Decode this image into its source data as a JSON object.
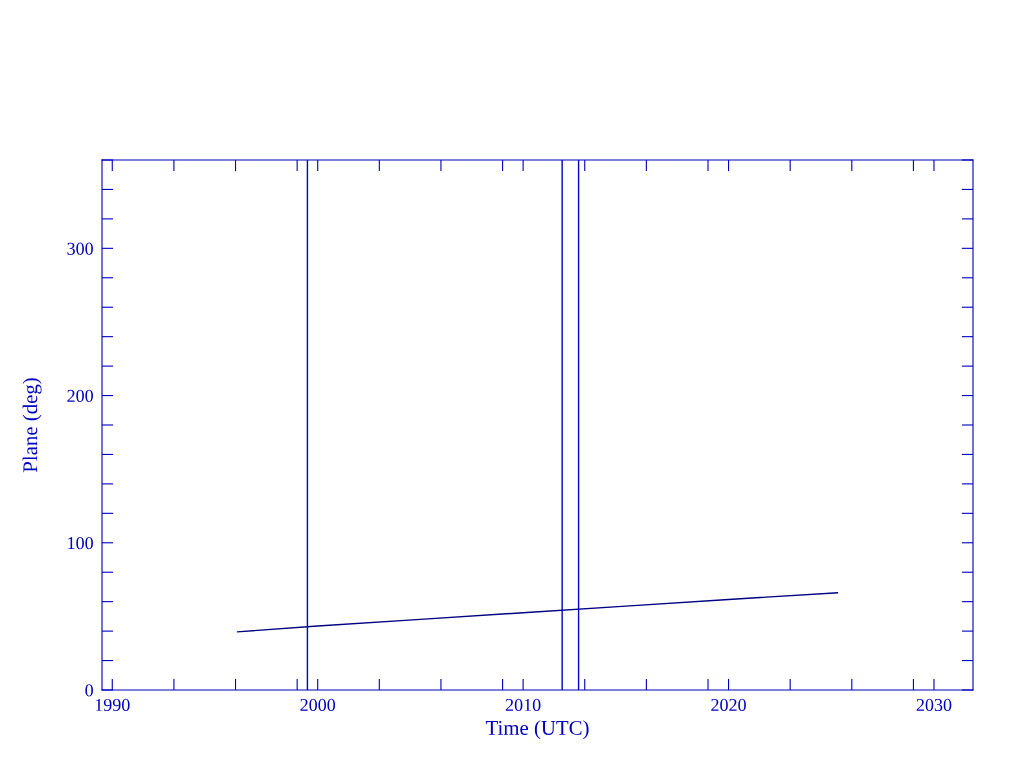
{
  "chart_data": {
    "type": "line",
    "xlabel": "Time (UTC)",
    "ylabel": "Plane (deg)",
    "x": [
      1996.1,
      2000,
      2005,
      2010,
      2015,
      2020,
      2025.3
    ],
    "series": [
      {
        "color": "#000080",
        "values": [
          39.5,
          43.5,
          48,
          52.5,
          57,
          61.5,
          66
        ]
      }
    ],
    "xlim": [
      1989.5,
      2031.9
    ],
    "ylim": [
      0,
      360
    ],
    "xticks": [
      1990,
      {
        "value": 1993,
        "label": null
      },
      {
        "value": 1996,
        "label": null
      },
      {
        "value": 1999,
        "label": null
      },
      2000,
      {
        "value": 2003,
        "label": null
      },
      {
        "value": 2006,
        "label": null
      },
      {
        "value": 2009,
        "label": null
      },
      2010,
      {
        "value": 2013,
        "label": null
      },
      {
        "value": 2016,
        "label": null
      },
      {
        "value": 2019,
        "label": null
      },
      2020,
      {
        "value": 2023,
        "label": null
      },
      {
        "value": 2026,
        "label": null
      },
      {
        "value": 2029,
        "label": null
      },
      2030
    ],
    "yticks": [
      0,
      {
        "value": 20,
        "label": null
      },
      {
        "value": 40,
        "label": null
      },
      {
        "value": 60,
        "label": null
      },
      {
        "value": 80,
        "label": null
      },
      100,
      {
        "value": 120,
        "label": null
      },
      {
        "value": 140,
        "label": null
      },
      {
        "value": 160,
        "label": null
      },
      {
        "value": 180,
        "label": null
      },
      200,
      {
        "value": 220,
        "label": null
      },
      {
        "value": 240,
        "label": null
      },
      {
        "value": 260,
        "label": null
      },
      {
        "value": 280,
        "label": null
      },
      300,
      {
        "value": 320,
        "label": null
      },
      {
        "value": 340,
        "label": null
      },
      {
        "value": 360,
        "label": null
      }
    ],
    "ref_lines": [
      {
        "axis": "x",
        "value": 1999.5,
        "color": "#0000c0"
      },
      {
        "axis": "x",
        "value": 2011.9,
        "color": "#0000c0"
      },
      {
        "axis": "x",
        "value": 2012.7,
        "color": "#0000c0"
      }
    ],
    "grid": false,
    "legend": false,
    "marker": "none",
    "line_style": "solid"
  }
}
